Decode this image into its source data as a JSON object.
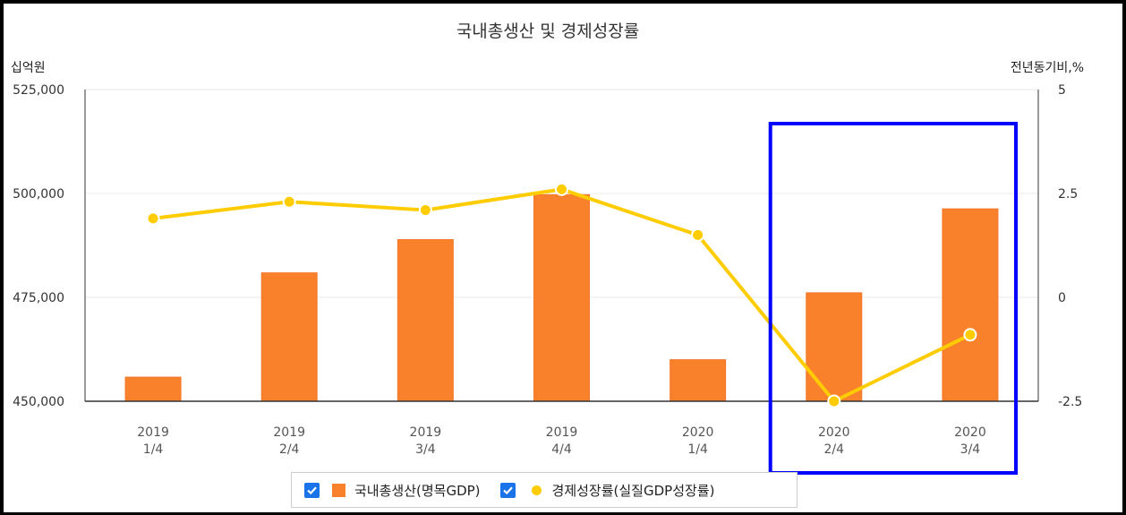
{
  "colors": {
    "bar": "#fa812b",
    "bar_edge": "#f4772a",
    "line": "#ffcc00",
    "highlight_box": "#0000ff",
    "grid": "#e8e8e8"
  },
  "chart_data": {
    "type": "bar",
    "title": "국내총생산 및 경제성장률",
    "left_axis_unit": "십억원",
    "right_axis_unit": "전년동기비,%",
    "categories": [
      [
        "2019",
        "1/4"
      ],
      [
        "2019",
        "2/4"
      ],
      [
        "2019",
        "3/4"
      ],
      [
        "2019",
        "4/4"
      ],
      [
        "2020",
        "1/4"
      ],
      [
        "2020",
        "2/4"
      ],
      [
        "2020",
        "3/4"
      ]
    ],
    "y_left": {
      "range": [
        450000,
        525000
      ],
      "ticks": [
        "450,000",
        "475,000",
        "500,000",
        "525,000"
      ],
      "tick_values": [
        450000,
        475000,
        500000,
        525000
      ]
    },
    "y_right": {
      "range": [
        -2.5,
        5
      ],
      "ticks": [
        "-2.5",
        "0",
        "2.5",
        "5"
      ],
      "tick_values": [
        -2.5,
        0,
        2.5,
        5
      ]
    },
    "grid": true,
    "legend_position": "bottom",
    "series": [
      {
        "name": "국내총생산(명목GDP)",
        "type": "bar",
        "axis": "left",
        "values": [
          455800,
          480900,
          488900,
          499700,
          460000,
          476100,
          496300
        ]
      },
      {
        "name": "경제성장률(실질GDP성장률)",
        "type": "line",
        "axis": "right",
        "values": [
          1.9,
          2.3,
          2.1,
          2.6,
          1.5,
          -2.5,
          -0.9
        ]
      }
    ],
    "annotation": "blue highlight box around 2020 2/4 and 2020 3/4"
  },
  "legend": {
    "items": [
      {
        "label": "국내총생산(명목GDP)",
        "checked": true,
        "marker": "bar"
      },
      {
        "label": "경제성장률(실질GDP성장률)",
        "checked": true,
        "marker": "dot"
      }
    ]
  }
}
